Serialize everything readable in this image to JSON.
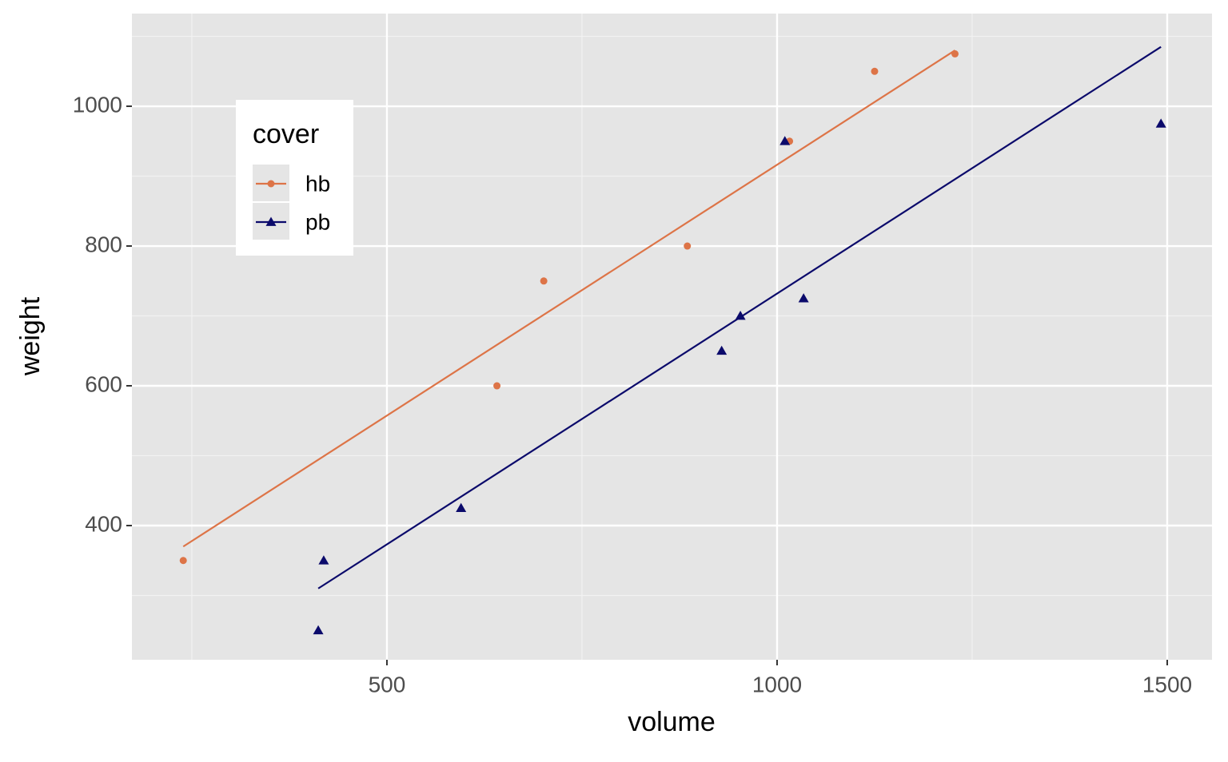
{
  "chart_data": {
    "type": "scatter",
    "x_label": "volume",
    "y_label": "weight",
    "xlim": [
      173.2,
      1557.4
    ],
    "ylim": [
      208,
      1132.6
    ],
    "xticks": [
      500,
      1000,
      1500
    ],
    "yticks": [
      400,
      600,
      800,
      1000
    ],
    "xminor": [
      250,
      750,
      1250
    ],
    "yminor": [
      300,
      500,
      700,
      900,
      1100
    ],
    "grid": true,
    "legend": {
      "title": "cover",
      "position": "upper left"
    },
    "series": [
      {
        "name": "hb",
        "color": "#dd7447",
        "shape": "circle",
        "x": [
          885,
          1016,
          1125,
          239,
          701,
          641,
          1228
        ],
        "values": [
          800,
          950,
          1050,
          350,
          750,
          600,
          1075
        ],
        "fit": {
          "x": [
            239,
            1228
          ],
          "values": [
            370,
            1080
          ]
        }
      },
      {
        "name": "pb",
        "color": "#0b0a6b",
        "shape": "triangle",
        "x": [
          412,
          953,
          929,
          1492,
          419,
          1010,
          595,
          1034
        ],
        "values": [
          250,
          700,
          650,
          975,
          350,
          950,
          425,
          725
        ],
        "fit": {
          "x": [
            412,
            1492
          ],
          "values": [
            310,
            1085
          ]
        }
      }
    ]
  }
}
